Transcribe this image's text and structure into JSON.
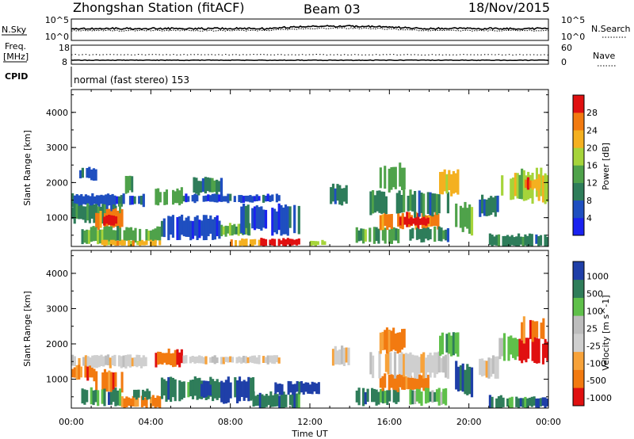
{
  "header": {
    "station": "Zhongshan Station (fitACF)",
    "beam": "Beam 03",
    "date": "18/Nov/2015"
  },
  "noise_panel": {
    "left_label": "N.Sky",
    "right_label": "N.Search",
    "left_ticks": [
      "10^5",
      "10^0"
    ],
    "right_ticks": [
      "10^5",
      "10^0"
    ]
  },
  "freq_panel": {
    "left_label_1": "Freq.",
    "left_label_2": "[MHz]",
    "right_label": "Nave",
    "left_ticks": [
      "18",
      "8"
    ],
    "right_ticks": [
      "60",
      "0"
    ]
  },
  "cpid_panel": {
    "label": "CPID",
    "text": "normal (fast stereo) 153"
  },
  "colors": {
    "power": [
      "#1a22f0",
      "#1f4fc0",
      "#2e7d5a",
      "#4fa24a",
      "#a6d43a",
      "#f4b020",
      "#f27a10",
      "#e01010"
    ],
    "velocity": [
      "#e01010",
      "#f27a10",
      "#f7a23a",
      "#cfcfcf",
      "#bdbdbd",
      "#5fc04a",
      "#2f7d5a",
      "#1f3fa8"
    ]
  },
  "chart_data": [
    {
      "type": "heatmap",
      "parameter": "power",
      "ylabel": "Slant Range [km]",
      "yticks": [
        "1000",
        "2000",
        "3000",
        "4000"
      ],
      "ylim": [
        180,
        4650
      ],
      "xlim": [
        0,
        24
      ],
      "colorbar_label": "Power [dB]",
      "colorbar_ticks": [
        "4",
        "8",
        "12",
        "16",
        "20",
        "24",
        "28"
      ],
      "colorbar_range": [
        0,
        32
      ],
      "regions": [
        {
          "t0": 0.0,
          "t1": 3.8,
          "r0": 1350,
          "r1": 1650,
          "level": 1
        },
        {
          "t0": 0.0,
          "t1": 2.5,
          "r0": 900,
          "r1": 1350,
          "level": 2
        },
        {
          "t0": 1.2,
          "t1": 2.6,
          "r0": 700,
          "r1": 1200,
          "level": 6
        },
        {
          "t0": 1.6,
          "t1": 2.3,
          "r0": 800,
          "r1": 1050,
          "level": 7
        },
        {
          "t0": 0.5,
          "t1": 4.5,
          "r0": 300,
          "r1": 700,
          "level": 3
        },
        {
          "t0": 1.5,
          "t1": 4.5,
          "r0": 200,
          "r1": 350,
          "level": 5
        },
        {
          "t0": 0.4,
          "t1": 1.4,
          "r0": 2100,
          "r1": 2400,
          "level": 1
        },
        {
          "t0": 2.7,
          "t1": 3.2,
          "r0": 1700,
          "r1": 2200,
          "level": 3
        },
        {
          "t0": 4.2,
          "t1": 5.6,
          "r0": 1400,
          "r1": 1800,
          "level": 3
        },
        {
          "t0": 5.6,
          "t1": 10.5,
          "r0": 1450,
          "r1": 1650,
          "level": 1
        },
        {
          "t0": 4.5,
          "t1": 7.5,
          "r0": 450,
          "r1": 1000,
          "level": 1
        },
        {
          "t0": 6.0,
          "t1": 7.6,
          "r0": 1700,
          "r1": 2100,
          "level": 2
        },
        {
          "t0": 7.5,
          "t1": 9.0,
          "r0": 500,
          "r1": 800,
          "level": 3
        },
        {
          "t0": 8.0,
          "t1": 9.5,
          "r0": 200,
          "r1": 380,
          "level": 5
        },
        {
          "t0": 9.5,
          "t1": 11.5,
          "r0": 200,
          "r1": 400,
          "level": 7
        },
        {
          "t0": 10.5,
          "t1": 11.3,
          "r0": 250,
          "r1": 350,
          "level": 8
        },
        {
          "t0": 8.5,
          "t1": 11.5,
          "r0": 600,
          "r1": 1300,
          "level": 1
        },
        {
          "t0": 12.0,
          "t1": 12.8,
          "r0": 200,
          "r1": 350,
          "level": 4
        },
        {
          "t0": 13.0,
          "t1": 14.0,
          "r0": 1400,
          "r1": 1900,
          "level": 2
        },
        {
          "t0": 14.3,
          "t1": 16.5,
          "r0": 300,
          "r1": 700,
          "level": 3
        },
        {
          "t0": 15.5,
          "t1": 18.5,
          "r0": 700,
          "r1": 1100,
          "level": 6
        },
        {
          "t0": 16.5,
          "t1": 18.0,
          "r0": 800,
          "r1": 1000,
          "level": 7
        },
        {
          "t0": 15.0,
          "t1": 19.0,
          "r0": 1100,
          "r1": 1700,
          "level": 2
        },
        {
          "t0": 15.5,
          "t1": 16.8,
          "r0": 1800,
          "r1": 2500,
          "level": 3
        },
        {
          "t0": 17.0,
          "t1": 19.0,
          "r0": 350,
          "r1": 700,
          "level": 2
        },
        {
          "t0": 18.5,
          "t1": 19.5,
          "r0": 1700,
          "r1": 2300,
          "level": 5
        },
        {
          "t0": 19.3,
          "t1": 20.2,
          "r0": 600,
          "r1": 1400,
          "level": 3
        },
        {
          "t0": 20.5,
          "t1": 21.5,
          "r0": 1100,
          "r1": 1600,
          "level": 2
        },
        {
          "t0": 21.5,
          "t1": 22.5,
          "r0": 1600,
          "r1": 2200,
          "level": 4
        },
        {
          "t0": 22.5,
          "t1": 24.0,
          "r0": 1500,
          "r1": 2300,
          "level": 4
        },
        {
          "t0": 22.8,
          "t1": 23.6,
          "r0": 1800,
          "r1": 2100,
          "level": 6
        },
        {
          "t0": 21.0,
          "t1": 24.0,
          "r0": 200,
          "r1": 500,
          "level": 2
        }
      ]
    },
    {
      "type": "heatmap",
      "parameter": "velocity",
      "ylabel": "Slant Range [km]",
      "yticks": [
        "1000",
        "2000",
        "3000",
        "4000"
      ],
      "ylim": [
        180,
        4650
      ],
      "xlim": [
        0,
        24
      ],
      "xlabel": "Time UT",
      "xticks": [
        "00:00",
        "04:00",
        "08:00",
        "12:00",
        "16:00",
        "20:00",
        "00:00"
      ],
      "colorbar_label": "Velocity [m s^-1]",
      "colorbar_ticks": [
        "1000",
        "500",
        "100",
        "25",
        "-25",
        "-100",
        "-500",
        "-1000"
      ],
      "regions": [
        {
          "t0": 0.0,
          "t1": 3.8,
          "r0": 1350,
          "r1": 1650,
          "level": 3
        },
        {
          "t0": 0.0,
          "t1": 1.2,
          "r0": 1000,
          "r1": 1350,
          "level": 1
        },
        {
          "t0": 1.2,
          "t1": 2.6,
          "r0": 700,
          "r1": 1200,
          "level": 1
        },
        {
          "t0": 0.5,
          "t1": 2.5,
          "r0": 300,
          "r1": 700,
          "level": 6
        },
        {
          "t0": 2.5,
          "t1": 4.5,
          "r0": 200,
          "r1": 500,
          "level": 1
        },
        {
          "t0": 3.0,
          "t1": 4.2,
          "r0": 450,
          "r1": 700,
          "level": 6
        },
        {
          "t0": 4.2,
          "t1": 5.6,
          "r0": 1400,
          "r1": 1800,
          "level": 1
        },
        {
          "t0": 5.6,
          "t1": 10.5,
          "r0": 1450,
          "r1": 1650,
          "level": 3
        },
        {
          "t0": 4.5,
          "t1": 7.5,
          "r0": 450,
          "r1": 1000,
          "level": 6
        },
        {
          "t0": 6.5,
          "t1": 7.5,
          "r0": 500,
          "r1": 900,
          "level": 7
        },
        {
          "t0": 7.5,
          "t1": 9.2,
          "r0": 400,
          "r1": 1000,
          "level": 7
        },
        {
          "t0": 9.0,
          "t1": 11.5,
          "r0": 200,
          "r1": 600,
          "level": 6
        },
        {
          "t0": 10.0,
          "t1": 12.5,
          "r0": 600,
          "r1": 900,
          "level": 7
        },
        {
          "t0": 13.0,
          "t1": 14.0,
          "r0": 1400,
          "r1": 1900,
          "level": 3
        },
        {
          "t0": 14.3,
          "t1": 16.5,
          "r0": 300,
          "r1": 700,
          "level": 6
        },
        {
          "t0": 15.5,
          "t1": 18.0,
          "r0": 700,
          "r1": 1100,
          "level": 1
        },
        {
          "t0": 15.0,
          "t1": 19.0,
          "r0": 1100,
          "r1": 1700,
          "level": 3
        },
        {
          "t0": 15.5,
          "t1": 16.8,
          "r0": 1800,
          "r1": 2400,
          "level": 1
        },
        {
          "t0": 17.0,
          "t1": 19.0,
          "r0": 300,
          "r1": 700,
          "level": 5
        },
        {
          "t0": 18.5,
          "t1": 19.5,
          "r0": 1700,
          "r1": 2300,
          "level": 5
        },
        {
          "t0": 19.3,
          "t1": 20.2,
          "r0": 600,
          "r1": 1400,
          "level": 7
        },
        {
          "t0": 20.5,
          "t1": 21.5,
          "r0": 1100,
          "r1": 1600,
          "level": 3
        },
        {
          "t0": 21.5,
          "t1": 22.5,
          "r0": 1600,
          "r1": 2200,
          "level": 5
        },
        {
          "t0": 22.5,
          "t1": 24.0,
          "r0": 1500,
          "r1": 2100,
          "level": 0
        },
        {
          "t0": 22.5,
          "t1": 23.8,
          "r0": 2100,
          "r1": 2700,
          "level": 1
        },
        {
          "t0": 21.0,
          "t1": 24.0,
          "r0": 200,
          "r1": 500,
          "level": 6
        }
      ]
    }
  ]
}
